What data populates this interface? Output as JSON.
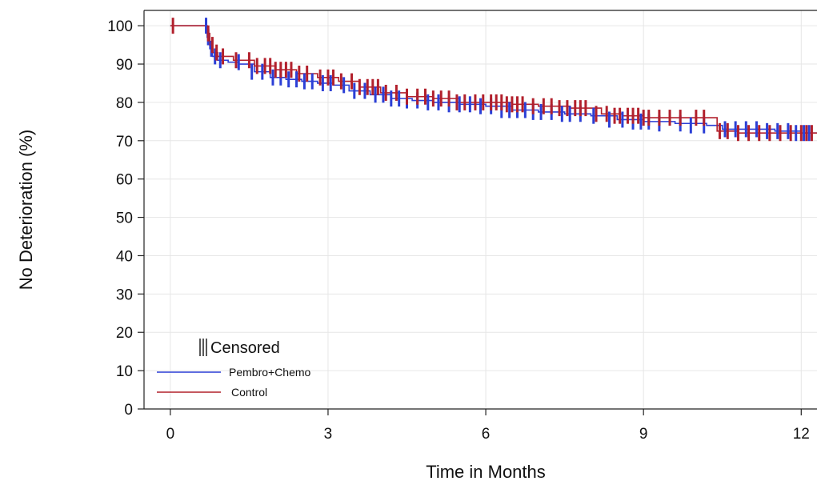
{
  "chart_data": {
    "type": "line",
    "subtype": "kaplan-meier-step",
    "title": "",
    "xlabel": "Time in Months",
    "ylabel": "No Deterioration (%)",
    "xlim": [
      -0.5,
      12.3
    ],
    "ylim": [
      0,
      104
    ],
    "x_ticks": [
      0,
      3,
      6,
      9,
      12
    ],
    "y_ticks": [
      0,
      10,
      20,
      30,
      40,
      50,
      60,
      70,
      80,
      90,
      100
    ],
    "grid": true,
    "legend": {
      "placement": "bottom-left",
      "title": "Censored",
      "entries": [
        "Pembro+Chemo",
        "Control"
      ]
    },
    "colors": {
      "Pembro+Chemo": "#2b3fd6",
      "Control": "#b2202c"
    },
    "series": [
      {
        "name": "Pembro+Chemo",
        "x": [
          0,
          0.65,
          0.7,
          0.75,
          0.8,
          0.9,
          1.1,
          1.3,
          1.6,
          1.9,
          2.2,
          2.5,
          2.8,
          3.1,
          3.4,
          3.8,
          4.2,
          4.6,
          5.0,
          5.5,
          6.0,
          6.5,
          7.0,
          7.5,
          8.0,
          8.5,
          9.0,
          9.6,
          10.2,
          10.5,
          11.0,
          11.5,
          12.0,
          12.3
        ],
        "y": [
          100,
          100,
          97,
          94,
          92,
          91,
          90.5,
          90,
          88,
          86.5,
          86,
          85.5,
          85,
          84.5,
          83,
          82,
          81,
          80.5,
          80,
          79.5,
          79,
          78,
          77.5,
          77,
          76.5,
          75.5,
          75,
          74.5,
          74,
          73,
          73,
          72.5,
          72,
          72
        ]
      },
      {
        "name": "Control",
        "x": [
          0,
          0.65,
          0.7,
          0.75,
          0.8,
          0.9,
          1.2,
          1.6,
          2.0,
          2.4,
          2.8,
          3.2,
          3.6,
          4.0,
          4.5,
          5.0,
          5.5,
          6.0,
          6.5,
          7.0,
          7.6,
          8.2,
          8.6,
          9.0,
          9.5,
          10.0,
          10.4,
          10.8,
          11.5,
          12.0,
          12.3
        ],
        "y": [
          100,
          100,
          98,
          95,
          93,
          92,
          91,
          89.5,
          88.5,
          87.5,
          86.5,
          85.5,
          84,
          82.5,
          81.5,
          81,
          80,
          80,
          79.5,
          79,
          78.5,
          77,
          76.5,
          76,
          76,
          76,
          72.5,
          72,
          72,
          72,
          72
        ]
      }
    ],
    "censored": [
      {
        "name": "Pembro+Chemo",
        "x": [
          0.68,
          0.72,
          0.78,
          0.85,
          0.95,
          1.3,
          1.55,
          1.75,
          1.95,
          2.1,
          2.25,
          2.4,
          2.55,
          2.7,
          2.9,
          3.05,
          3.3,
          3.5,
          3.7,
          3.9,
          4.05,
          4.2,
          4.35,
          4.5,
          4.7,
          4.9,
          5.1,
          5.3,
          5.5,
          5.7,
          5.9,
          6.1,
          6.3,
          6.45,
          6.6,
          6.75,
          6.9,
          7.05,
          7.25,
          7.45,
          7.6,
          7.8,
          8.05,
          8.35,
          8.6,
          8.8,
          8.95,
          9.1,
          9.3,
          9.7,
          9.9,
          10.15,
          10.55,
          10.75,
          10.95,
          11.15,
          11.35,
          11.55,
          11.75,
          11.9,
          12.05,
          12.15
        ],
        "y": [
          100,
          97,
          94,
          92,
          91,
          90.5,
          88,
          88,
          86.5,
          86.5,
          86,
          86,
          85.5,
          85.5,
          85,
          85,
          84.5,
          83,
          83,
          82,
          82,
          81,
          81,
          80.5,
          80.5,
          80,
          80,
          79.5,
          79.5,
          79.5,
          79,
          79,
          78,
          78,
          78,
          78,
          77.5,
          77.5,
          77.5,
          77,
          77,
          77,
          76.5,
          75.5,
          75.5,
          75,
          75,
          75,
          74.5,
          74.5,
          74,
          74,
          73,
          73,
          73,
          73,
          72.5,
          72.5,
          72.5,
          72,
          72,
          72
        ]
      },
      {
        "name": "Control",
        "x": [
          0.05,
          0.72,
          0.8,
          0.88,
          1.0,
          1.25,
          1.5,
          1.65,
          1.8,
          1.9,
          2.0,
          2.1,
          2.2,
          2.3,
          2.45,
          2.6,
          2.85,
          3.0,
          3.1,
          3.25,
          3.45,
          3.6,
          3.75,
          3.85,
          3.95,
          4.1,
          4.3,
          4.5,
          4.7,
          4.85,
          5.0,
          5.15,
          5.3,
          5.45,
          5.6,
          5.8,
          5.95,
          6.1,
          6.2,
          6.3,
          6.4,
          6.5,
          6.6,
          6.7,
          6.9,
          7.1,
          7.25,
          7.4,
          7.55,
          7.7,
          7.8,
          7.9,
          8.1,
          8.3,
          8.45,
          8.55,
          8.7,
          8.8,
          8.9,
          9.0,
          9.1,
          9.3,
          9.5,
          9.7,
          10.0,
          10.15,
          10.45,
          10.6,
          10.8,
          11.0,
          11.2,
          11.4,
          11.6,
          11.8,
          12.0,
          12.1,
          12.2
        ],
        "y": [
          100,
          98,
          95,
          93,
          92,
          91,
          91,
          89.5,
          89.5,
          89.5,
          88.5,
          88.5,
          88.5,
          88.5,
          87.5,
          87.5,
          86.5,
          86.5,
          86.5,
          85.5,
          85.5,
          84,
          84,
          84,
          84,
          82.5,
          82.5,
          81.5,
          81.5,
          81.5,
          81,
          81,
          81,
          80,
          80,
          80,
          80,
          80,
          80,
          80,
          79.5,
          79.5,
          79.5,
          79.5,
          79,
          79,
          79,
          78.5,
          78.5,
          78.5,
          78.5,
          78.5,
          77,
          77,
          76.5,
          76.5,
          76.5,
          76.5,
          76.5,
          76,
          76,
          76,
          76,
          76,
          76,
          76,
          72.5,
          72.5,
          72,
          72,
          72,
          72,
          72,
          72,
          72,
          72,
          72
        ]
      }
    ]
  }
}
